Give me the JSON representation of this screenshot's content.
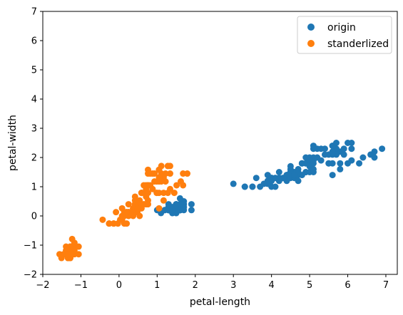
{
  "chart_data": {
    "type": "scatter",
    "title": "",
    "xlabel": "petal-length",
    "ylabel": "petal-width",
    "xlim": [
      -2,
      7.3
    ],
    "ylim": [
      -2,
      7
    ],
    "xticks": [
      -2,
      -1,
      0,
      1,
      2,
      3,
      4,
      5,
      6,
      7
    ],
    "yticks": [
      -2,
      -1,
      0,
      1,
      2,
      3,
      4,
      5,
      6,
      7
    ],
    "grid": false,
    "legend": "top-right",
    "series": [
      {
        "name": "origin",
        "color": "#1f77b4",
        "points": [
          [
            1.4,
            0.2
          ],
          [
            1.4,
            0.2
          ],
          [
            1.3,
            0.2
          ],
          [
            1.5,
            0.2
          ],
          [
            1.4,
            0.2
          ],
          [
            1.7,
            0.4
          ],
          [
            1.4,
            0.3
          ],
          [
            1.5,
            0.2
          ],
          [
            1.4,
            0.2
          ],
          [
            1.5,
            0.1
          ],
          [
            1.5,
            0.2
          ],
          [
            1.6,
            0.2
          ],
          [
            1.4,
            0.1
          ],
          [
            1.1,
            0.1
          ],
          [
            1.2,
            0.2
          ],
          [
            1.5,
            0.4
          ],
          [
            1.3,
            0.4
          ],
          [
            1.4,
            0.3
          ],
          [
            1.7,
            0.3
          ],
          [
            1.5,
            0.3
          ],
          [
            1.7,
            0.2
          ],
          [
            1.5,
            0.4
          ],
          [
            1.0,
            0.2
          ],
          [
            1.7,
            0.5
          ],
          [
            1.9,
            0.2
          ],
          [
            1.6,
            0.2
          ],
          [
            1.6,
            0.4
          ],
          [
            1.5,
            0.2
          ],
          [
            1.4,
            0.2
          ],
          [
            1.6,
            0.2
          ],
          [
            1.6,
            0.2
          ],
          [
            1.5,
            0.4
          ],
          [
            1.5,
            0.1
          ],
          [
            1.4,
            0.2
          ],
          [
            1.5,
            0.2
          ],
          [
            1.2,
            0.2
          ],
          [
            1.3,
            0.2
          ],
          [
            1.4,
            0.1
          ],
          [
            1.3,
            0.2
          ],
          [
            1.5,
            0.2
          ],
          [
            1.3,
            0.3
          ],
          [
            1.3,
            0.3
          ],
          [
            1.3,
            0.2
          ],
          [
            1.6,
            0.6
          ],
          [
            1.9,
            0.4
          ],
          [
            1.4,
            0.3
          ],
          [
            1.6,
            0.2
          ],
          [
            1.4,
            0.2
          ],
          [
            1.5,
            0.2
          ],
          [
            1.4,
            0.2
          ],
          [
            4.7,
            1.4
          ],
          [
            4.5,
            1.5
          ],
          [
            4.9,
            1.5
          ],
          [
            4.0,
            1.3
          ],
          [
            4.6,
            1.5
          ],
          [
            4.5,
            1.3
          ],
          [
            4.7,
            1.6
          ],
          [
            3.3,
            1.0
          ],
          [
            4.6,
            1.3
          ],
          [
            3.9,
            1.4
          ],
          [
            3.5,
            1.0
          ],
          [
            4.2,
            1.5
          ],
          [
            4.0,
            1.0
          ],
          [
            4.7,
            1.4
          ],
          [
            3.6,
            1.3
          ],
          [
            4.4,
            1.4
          ],
          [
            4.5,
            1.5
          ],
          [
            4.1,
            1.0
          ],
          [
            4.5,
            1.5
          ],
          [
            3.9,
            1.1
          ],
          [
            4.8,
            1.8
          ],
          [
            4.0,
            1.3
          ],
          [
            4.9,
            1.5
          ],
          [
            4.7,
            1.2
          ],
          [
            4.3,
            1.3
          ],
          [
            4.4,
            1.4
          ],
          [
            4.8,
            1.4
          ],
          [
            5.0,
            1.7
          ],
          [
            4.5,
            1.5
          ],
          [
            3.5,
            1.0
          ],
          [
            3.8,
            1.1
          ],
          [
            3.7,
            1.0
          ],
          [
            3.9,
            1.2
          ],
          [
            5.1,
            1.6
          ],
          [
            4.5,
            1.5
          ],
          [
            4.5,
            1.6
          ],
          [
            4.7,
            1.5
          ],
          [
            4.4,
            1.3
          ],
          [
            4.1,
            1.3
          ],
          [
            4.0,
            1.3
          ],
          [
            4.4,
            1.2
          ],
          [
            4.6,
            1.4
          ],
          [
            4.0,
            1.2
          ],
          [
            3.3,
            1.0
          ],
          [
            4.2,
            1.3
          ],
          [
            4.2,
            1.2
          ],
          [
            4.2,
            1.3
          ],
          [
            4.3,
            1.3
          ],
          [
            3.0,
            1.1
          ],
          [
            4.1,
            1.3
          ],
          [
            6.0,
            2.5
          ],
          [
            5.1,
            1.9
          ],
          [
            5.9,
            2.1
          ],
          [
            5.6,
            1.8
          ],
          [
            5.8,
            2.2
          ],
          [
            6.6,
            2.1
          ],
          [
            4.5,
            1.7
          ],
          [
            6.3,
            1.8
          ],
          [
            5.8,
            1.8
          ],
          [
            6.1,
            2.5
          ],
          [
            5.1,
            2.0
          ],
          [
            5.3,
            1.9
          ],
          [
            5.5,
            2.1
          ],
          [
            5.0,
            2.0
          ],
          [
            5.1,
            2.4
          ],
          [
            5.3,
            2.3
          ],
          [
            5.5,
            1.8
          ],
          [
            6.7,
            2.2
          ],
          [
            6.9,
            2.3
          ],
          [
            5.0,
            1.5
          ],
          [
            5.7,
            2.3
          ],
          [
            4.9,
            2.0
          ],
          [
            6.7,
            2.0
          ],
          [
            4.9,
            1.8
          ],
          [
            5.7,
            2.1
          ],
          [
            6.0,
            1.8
          ],
          [
            4.8,
            1.8
          ],
          [
            4.9,
            1.8
          ],
          [
            5.6,
            2.1
          ],
          [
            5.8,
            1.6
          ],
          [
            6.1,
            1.9
          ],
          [
            6.4,
            2.0
          ],
          [
            5.6,
            2.2
          ],
          [
            5.1,
            1.5
          ],
          [
            5.6,
            1.4
          ],
          [
            6.1,
            2.3
          ],
          [
            5.6,
            2.4
          ],
          [
            5.5,
            1.8
          ],
          [
            4.8,
            1.8
          ],
          [
            5.4,
            2.1
          ],
          [
            5.6,
            2.4
          ],
          [
            5.1,
            2.3
          ],
          [
            5.9,
            2.3
          ],
          [
            5.7,
            2.5
          ],
          [
            5.2,
            2.3
          ],
          [
            5.0,
            1.9
          ],
          [
            5.2,
            2.0
          ],
          [
            5.4,
            2.3
          ],
          [
            5.1,
            1.8
          ]
        ]
      },
      {
        "name": "standerlized",
        "color": "#ff7f0e",
        "points": [
          [
            -1.34,
            -1.31
          ],
          [
            -1.34,
            -1.31
          ],
          [
            -1.39,
            -1.31
          ],
          [
            -1.28,
            -1.31
          ],
          [
            -1.34,
            -1.31
          ],
          [
            -1.17,
            -1.05
          ],
          [
            -1.34,
            -1.18
          ],
          [
            -1.28,
            -1.31
          ],
          [
            -1.34,
            -1.31
          ],
          [
            -1.28,
            -1.44
          ],
          [
            -1.28,
            -1.31
          ],
          [
            -1.23,
            -1.31
          ],
          [
            -1.34,
            -1.44
          ],
          [
            -1.51,
            -1.44
          ],
          [
            -1.45,
            -1.31
          ],
          [
            -1.28,
            -1.05
          ],
          [
            -1.39,
            -1.05
          ],
          [
            -1.34,
            -1.18
          ],
          [
            -1.17,
            -1.18
          ],
          [
            -1.28,
            -1.18
          ],
          [
            -1.17,
            -1.31
          ],
          [
            -1.28,
            -1.05
          ],
          [
            -1.56,
            -1.31
          ],
          [
            -1.17,
            -0.92
          ],
          [
            -1.06,
            -1.31
          ],
          [
            -1.23,
            -1.31
          ],
          [
            -1.23,
            -1.05
          ],
          [
            -1.28,
            -1.31
          ],
          [
            -1.34,
            -1.31
          ],
          [
            -1.23,
            -1.31
          ],
          [
            -1.23,
            -1.31
          ],
          [
            -1.28,
            -1.05
          ],
          [
            -1.28,
            -1.44
          ],
          [
            -1.34,
            -1.31
          ],
          [
            -1.28,
            -1.31
          ],
          [
            -1.45,
            -1.31
          ],
          [
            -1.39,
            -1.31
          ],
          [
            -1.34,
            -1.44
          ],
          [
            -1.39,
            -1.31
          ],
          [
            -1.28,
            -1.31
          ],
          [
            -1.39,
            -1.18
          ],
          [
            -1.39,
            -1.18
          ],
          [
            -1.39,
            -1.31
          ],
          [
            -1.23,
            -0.79
          ],
          [
            -1.06,
            -1.05
          ],
          [
            -1.34,
            -1.18
          ],
          [
            -1.23,
            -1.31
          ],
          [
            -1.34,
            -1.31
          ],
          [
            -1.28,
            -1.31
          ],
          [
            -1.34,
            -1.31
          ],
          [
            0.54,
            0.26
          ],
          [
            0.42,
            0.4
          ],
          [
            0.65,
            0.4
          ],
          [
            0.14,
            0.13
          ],
          [
            0.48,
            0.4
          ],
          [
            0.42,
            0.13
          ],
          [
            0.54,
            0.53
          ],
          [
            -0.26,
            -0.26
          ],
          [
            0.48,
            0.13
          ],
          [
            0.08,
            0.26
          ],
          [
            -0.14,
            -0.26
          ],
          [
            0.25,
            0.4
          ],
          [
            0.14,
            -0.26
          ],
          [
            0.54,
            0.26
          ],
          [
            -0.08,
            0.13
          ],
          [
            0.37,
            0.26
          ],
          [
            0.42,
            0.4
          ],
          [
            0.2,
            -0.26
          ],
          [
            0.42,
            0.4
          ],
          [
            0.08,
            -0.13
          ],
          [
            0.59,
            0.79
          ],
          [
            0.14,
            0.13
          ],
          [
            0.65,
            0.4
          ],
          [
            0.54,
            0.0
          ],
          [
            0.31,
            0.13
          ],
          [
            0.37,
            0.26
          ],
          [
            0.59,
            0.26
          ],
          [
            0.71,
            0.66
          ],
          [
            0.42,
            0.4
          ],
          [
            -0.14,
            -0.26
          ],
          [
            0.03,
            -0.13
          ],
          [
            -0.03,
            -0.26
          ],
          [
            0.08,
            0.0
          ],
          [
            0.76,
            0.53
          ],
          [
            0.42,
            0.4
          ],
          [
            0.42,
            0.53
          ],
          [
            0.54,
            0.4
          ],
          [
            0.37,
            0.13
          ],
          [
            0.2,
            0.13
          ],
          [
            0.14,
            0.13
          ],
          [
            0.37,
            0.0
          ],
          [
            0.48,
            0.26
          ],
          [
            0.14,
            0.0
          ],
          [
            -0.26,
            -0.26
          ],
          [
            0.25,
            0.13
          ],
          [
            0.25,
            0.0
          ],
          [
            0.25,
            0.13
          ],
          [
            0.31,
            0.13
          ],
          [
            -0.43,
            -0.13
          ],
          [
            0.2,
            0.13
          ],
          [
            1.28,
            1.71
          ],
          [
            0.76,
            1.05
          ],
          [
            1.22,
            1.18
          ],
          [
            1.05,
            0.79
          ],
          [
            1.17,
            1.32
          ],
          [
            1.62,
            1.18
          ],
          [
            0.42,
            0.66
          ],
          [
            1.45,
            0.79
          ],
          [
            1.17,
            0.79
          ],
          [
            1.34,
            1.71
          ],
          [
            0.76,
            1.05
          ],
          [
            0.88,
            0.92
          ],
          [
            0.99,
            1.18
          ],
          [
            0.71,
            1.05
          ],
          [
            0.76,
            1.58
          ],
          [
            0.88,
            1.45
          ],
          [
            0.99,
            0.79
          ],
          [
            1.68,
            1.45
          ],
          [
            1.79,
            1.45
          ],
          [
            0.71,
            0.4
          ],
          [
            1.11,
            1.45
          ],
          [
            0.65,
            1.05
          ],
          [
            1.68,
            1.05
          ],
          [
            0.65,
            0.79
          ],
          [
            1.11,
            1.18
          ],
          [
            1.28,
            0.79
          ],
          [
            0.59,
            0.79
          ],
          [
            0.65,
            0.79
          ],
          [
            1.05,
            1.18
          ],
          [
            1.17,
            0.53
          ],
          [
            1.34,
            0.92
          ],
          [
            1.51,
            1.05
          ],
          [
            1.05,
            1.32
          ],
          [
            0.76,
            0.4
          ],
          [
            1.05,
            0.26
          ],
          [
            1.34,
            1.45
          ],
          [
            1.05,
            1.58
          ],
          [
            0.99,
            0.79
          ],
          [
            0.59,
            0.79
          ],
          [
            0.93,
            1.18
          ],
          [
            1.05,
            1.58
          ],
          [
            0.76,
            1.45
          ],
          [
            1.22,
            1.45
          ],
          [
            1.11,
            1.71
          ],
          [
            0.82,
            1.45
          ],
          [
            0.71,
            0.92
          ],
          [
            0.82,
            1.05
          ],
          [
            0.93,
            1.45
          ],
          [
            0.76,
            0.79
          ]
        ]
      }
    ]
  }
}
